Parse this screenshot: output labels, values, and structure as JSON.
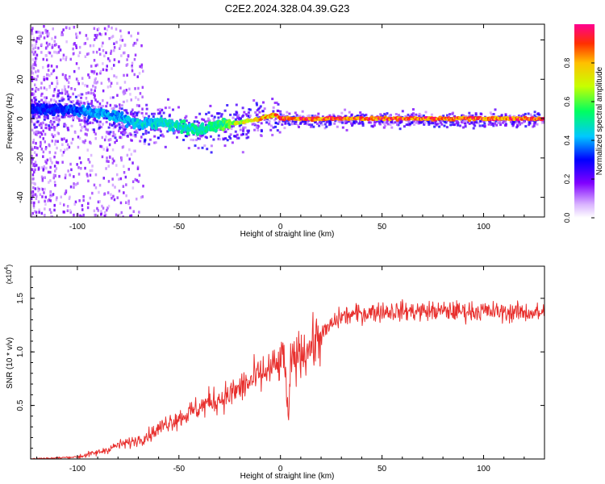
{
  "figure_title": "C2E2.2024.328.04.39.G23",
  "chart_data": [
    {
      "type": "heatmap",
      "title": "C2E2.2024.328.04.39.G23",
      "xlabel": "Height of straight line (km)",
      "ylabel": "Frequency (Hz)",
      "xlim": [
        -123,
        130
      ],
      "ylim": [
        -50,
        48
      ],
      "x_ticks": [
        -100,
        -50,
        0,
        50,
        100
      ],
      "y_ticks": [
        -40,
        -20,
        0,
        20,
        40
      ],
      "colorbar": {
        "label": "Normalized spectral amplitude",
        "range": [
          0.0,
          1.0
        ],
        "ticks": [
          0.0,
          0.2,
          0.4,
          0.6,
          0.8
        ]
      },
      "ridge": [
        {
          "x": -110,
          "freq": 5,
          "amp": 0.35
        },
        {
          "x": -100,
          "freq": 4,
          "amp": 0.4
        },
        {
          "x": -90,
          "freq": 3,
          "amp": 0.45
        },
        {
          "x": -80,
          "freq": 1,
          "amp": 0.45
        },
        {
          "x": -70,
          "freq": -3,
          "amp": 0.5
        },
        {
          "x": -60,
          "freq": -2,
          "amp": 0.5
        },
        {
          "x": -50,
          "freq": -4,
          "amp": 0.55
        },
        {
          "x": -40,
          "freq": -6,
          "amp": 0.55
        },
        {
          "x": -30,
          "freq": -3,
          "amp": 0.6
        },
        {
          "x": -20,
          "freq": -2,
          "amp": 0.8
        },
        {
          "x": -10,
          "freq": 0,
          "amp": 0.9
        },
        {
          "x": -3,
          "freq": 2,
          "amp": 0.9
        },
        {
          "x": 0,
          "freq": 0,
          "amp": 1.0
        },
        {
          "x": 130,
          "freq": 0,
          "amp": 1.0
        }
      ]
    },
    {
      "type": "line",
      "xlabel": "Height of straight line (km)",
      "ylabel": "SNR (10 * v/v)",
      "y_multiplier": "(x10",
      "y_multiplier_exp": "4",
      "y_multiplier_close": ")",
      "xlim": [
        -123,
        130
      ],
      "ylim": [
        0,
        1.8
      ],
      "x_ticks": [
        -100,
        -50,
        0,
        50,
        100
      ],
      "y_ticks": [
        0.5,
        1.0,
        1.5
      ],
      "y_tick_labels": [
        "0.5",
        "1.0",
        "1.5"
      ],
      "color": "#e8302e",
      "series": [
        {
          "x": [
            -123,
            -110,
            -100,
            -95,
            -90,
            -85,
            -80,
            -75,
            -70,
            -65,
            -60,
            -55,
            -50,
            -45,
            -40,
            -35,
            -30,
            -25,
            -20,
            -15,
            -10,
            -5,
            0,
            2,
            3,
            4,
            5,
            10,
            15,
            20,
            25,
            30,
            40,
            50,
            60,
            70,
            80,
            90,
            100,
            110,
            120,
            130
          ],
          "values": [
            0.0,
            0.01,
            0.02,
            0.04,
            0.06,
            0.09,
            0.13,
            0.15,
            0.18,
            0.22,
            0.28,
            0.35,
            0.38,
            0.43,
            0.48,
            0.53,
            0.56,
            0.6,
            0.66,
            0.72,
            0.78,
            0.84,
            0.88,
            1.0,
            0.6,
            0.32,
            0.9,
            1.0,
            1.05,
            1.15,
            1.25,
            1.33,
            1.36,
            1.38,
            1.38,
            1.38,
            1.38,
            1.38,
            1.38,
            1.37,
            1.37,
            1.36
          ]
        }
      ]
    }
  ]
}
